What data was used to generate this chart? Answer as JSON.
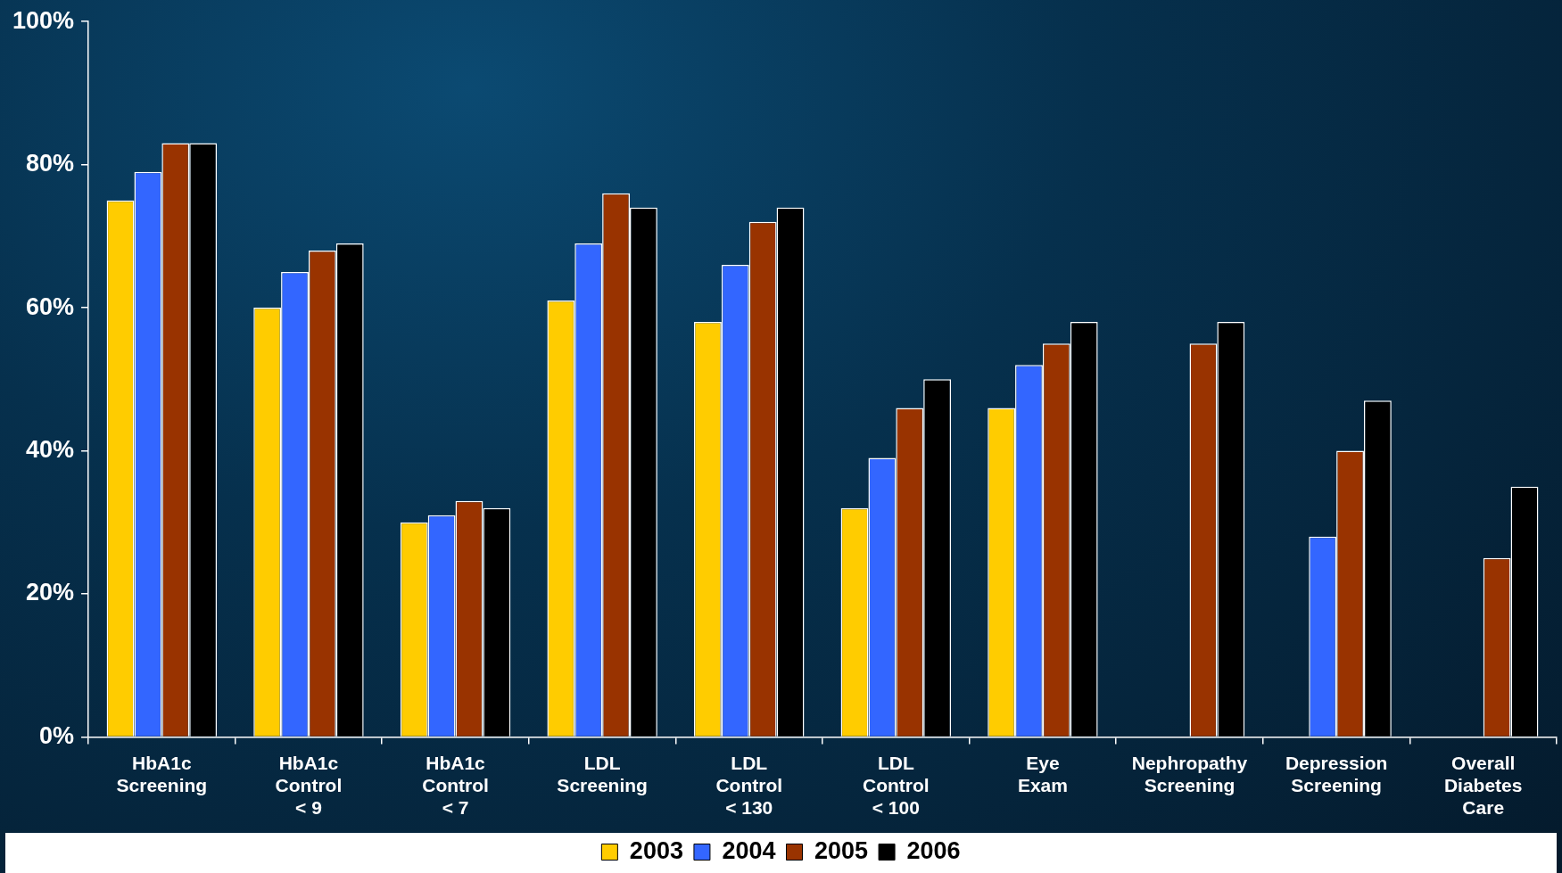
{
  "chart_data": {
    "type": "bar",
    "categories": [
      "HbA1c Screening",
      "HbA1c Control < 9",
      "HbA1c Control < 7",
      "LDL Screening",
      "LDL Control < 130",
      "LDL Control < 100",
      "Eye Exam",
      "Nephropathy Screening",
      "Depression Screening",
      "Overall Diabetes Care"
    ],
    "series": [
      {
        "name": "2003",
        "color": "#ffcc00",
        "values": [
          75,
          60,
          30,
          61,
          58,
          32,
          46,
          null,
          null,
          null
        ]
      },
      {
        "name": "2004",
        "color": "#3366ff",
        "values": [
          79,
          65,
          31,
          69,
          66,
          39,
          52,
          null,
          28,
          null
        ]
      },
      {
        "name": "2005",
        "color": "#993300",
        "values": [
          83,
          68,
          33,
          76,
          72,
          46,
          55,
          55,
          40,
          25
        ]
      },
      {
        "name": "2006",
        "color": "#000000",
        "values": [
          83,
          69,
          32,
          74,
          74,
          50,
          58,
          58,
          47,
          35
        ]
      }
    ],
    "ylim": [
      0,
      100
    ],
    "yticks": [
      {
        "value": 0,
        "label": "0%"
      },
      {
        "value": 20,
        "label": "20%"
      },
      {
        "value": 40,
        "label": "40%"
      },
      {
        "value": 60,
        "label": "60%"
      },
      {
        "value": 80,
        "label": "80%"
      },
      {
        "value": 100,
        "label": "100%"
      }
    ],
    "grid": false,
    "legend": "bottom"
  }
}
